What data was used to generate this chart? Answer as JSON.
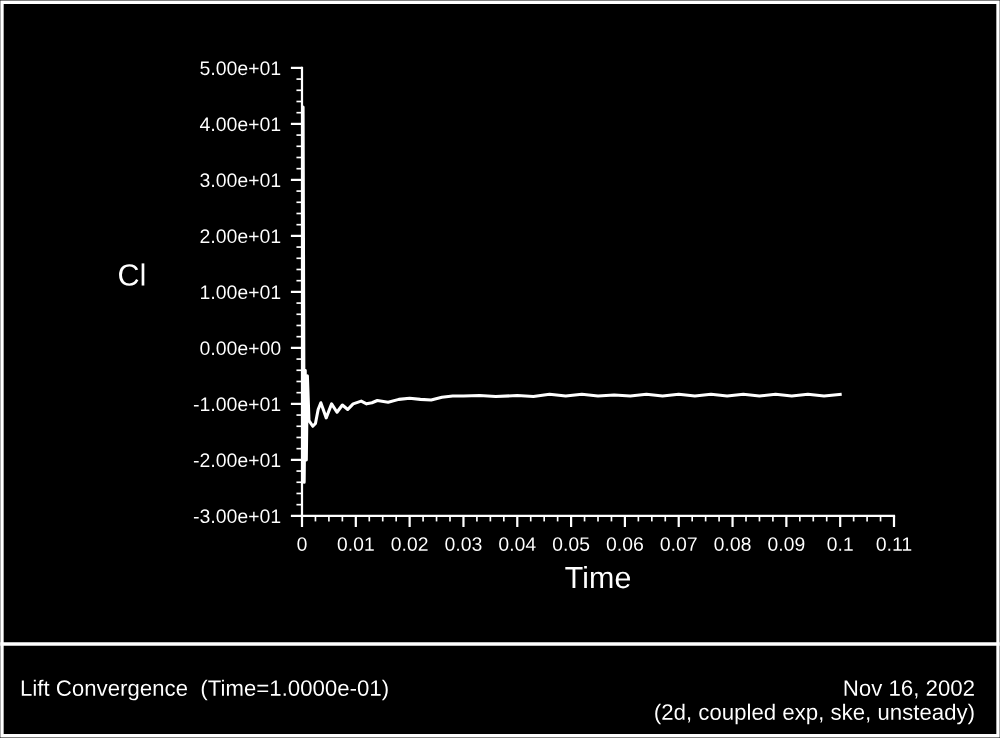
{
  "chart_data": {
    "type": "line",
    "xlabel": "Time",
    "ylabel": "Cl",
    "annotations": [
      "Lift Convergence  (Time=1.0000e-01)",
      "Nov 16, 2002",
      "(2d, coupled exp, ske, unsteady)"
    ],
    "x": [
      0,
      0.0002,
      0.0004,
      0.0006,
      0.0008,
      0.001,
      0.0013,
      0.002,
      0.0025,
      0.003,
      0.0035,
      0.0045,
      0.0055,
      0.0065,
      0.0075,
      0.0085,
      0.0095,
      0.011,
      0.012,
      0.013,
      0.014,
      0.016,
      0.018,
      0.02,
      0.022,
      0.024,
      0.026,
      0.028,
      0.03,
      0.033,
      0.036,
      0.04,
      0.043,
      0.046,
      0.049,
      0.052,
      0.055,
      0.058,
      0.061,
      0.064,
      0.067,
      0.07,
      0.073,
      0.076,
      0.079,
      0.082,
      0.085,
      0.088,
      0.091,
      0.094,
      0.097,
      0.1
    ],
    "series": [
      {
        "color": "#ffffff",
        "values": [
          -5,
          43,
          -24,
          -4,
          -20,
          -5,
          -13,
          -14,
          -13.5,
          -11,
          -9.8,
          -12.5,
          -10,
          -11.5,
          -10.2,
          -11,
          -10,
          -9.5,
          -10,
          -9.8,
          -9.4,
          -9.7,
          -9.2,
          -9,
          -9.2,
          -9.3,
          -8.8,
          -8.6,
          -8.6,
          -8.5,
          -8.7,
          -8.5,
          -8.7,
          -8.3,
          -8.6,
          -8.3,
          -8.6,
          -8.4,
          -8.6,
          -8.3,
          -8.6,
          -8.3,
          -8.6,
          -8.3,
          -8.6,
          -8.3,
          -8.6,
          -8.3,
          -8.6,
          -8.3,
          -8.6,
          -8.3
        ]
      }
    ],
    "xlim": [
      0,
      0.11
    ],
    "xticks": [
      0,
      0.01,
      0.02,
      0.03,
      0.04,
      0.05,
      0.06,
      0.07,
      0.08,
      0.09,
      0.1,
      0.11
    ],
    "ylim": [
      -30,
      50
    ],
    "yticks": [
      {
        "value": -30,
        "label": "-3.00e+01"
      },
      {
        "value": -20,
        "label": "-2.00e+01"
      },
      {
        "value": -10,
        "label": "-1.00e+01"
      },
      {
        "value": 0,
        "label": "0.00e+00"
      },
      {
        "value": 10,
        "label": "1.00e+01"
      },
      {
        "value": 20,
        "label": "2.00e+01"
      },
      {
        "value": 30,
        "label": "3.00e+01"
      },
      {
        "value": 40,
        "label": "4.00e+01"
      },
      {
        "value": 50,
        "label": "5.00e+01"
      }
    ],
    "grid": false,
    "legend": false,
    "marker": "none",
    "line_style": "solid"
  }
}
